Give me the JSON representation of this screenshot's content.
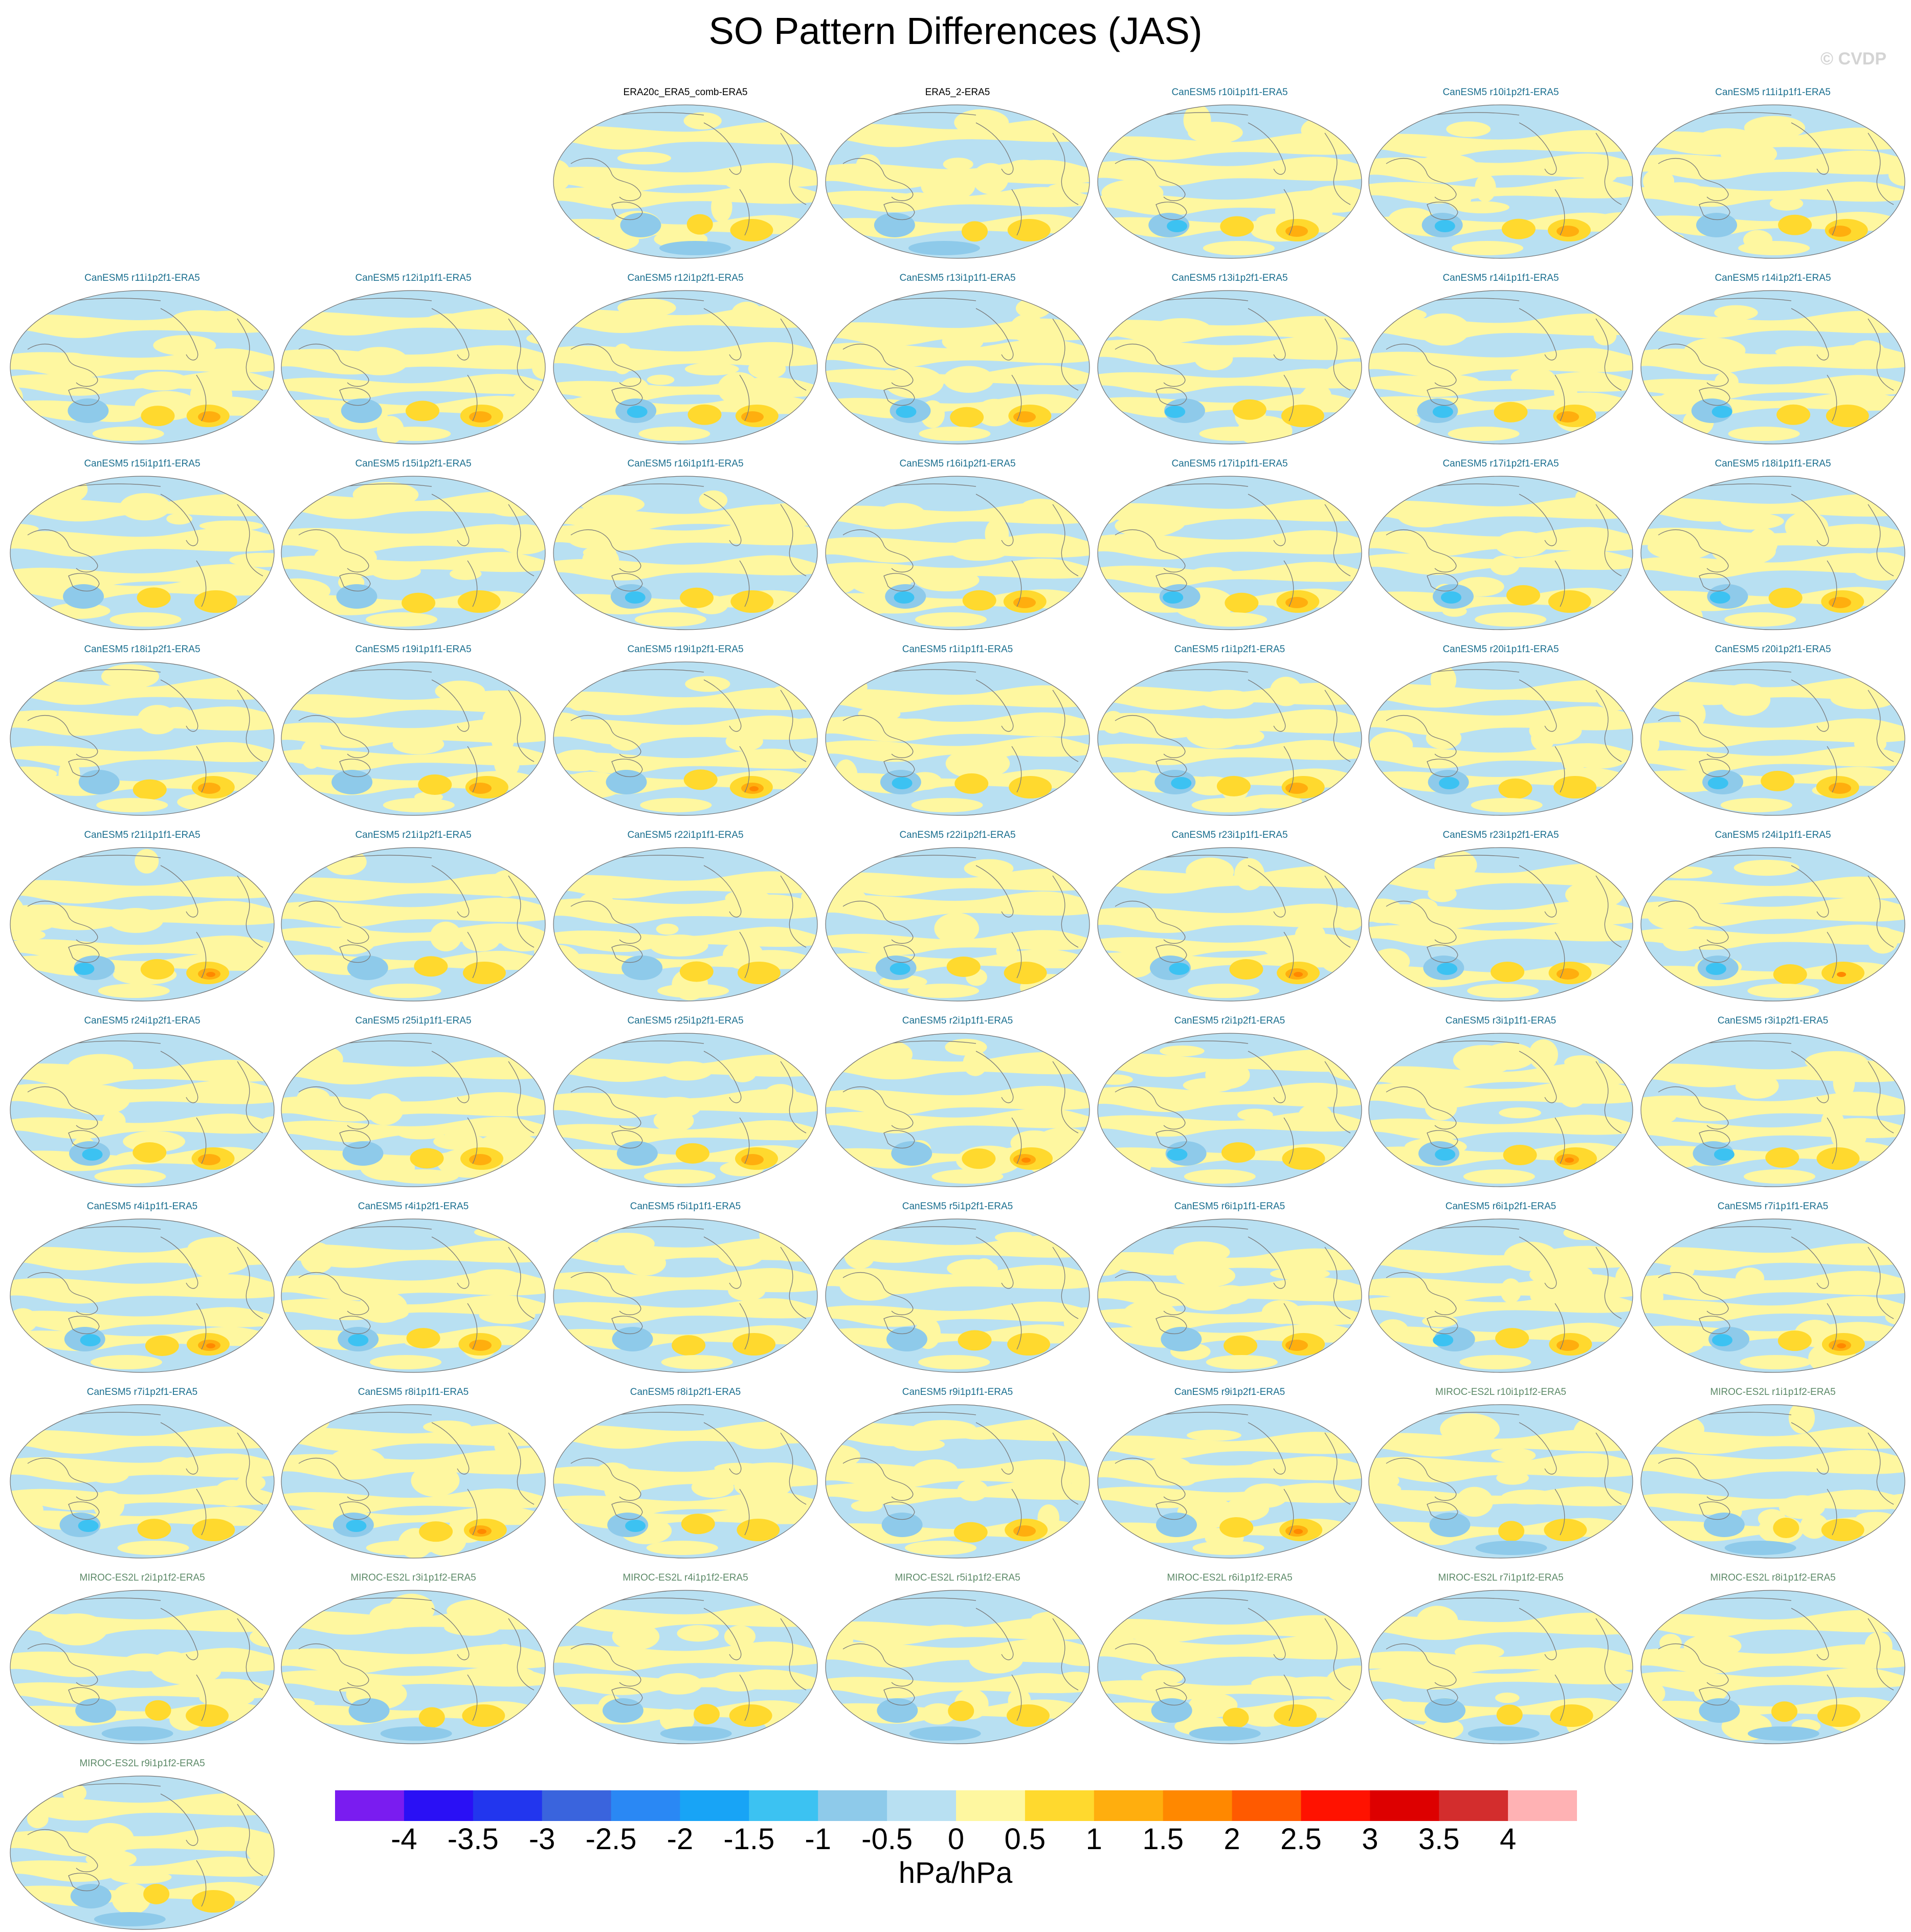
{
  "title": "SO Pattern Differences (JAS)",
  "credit": "© CVDP",
  "panels": [
    {
      "label": "ERA20c_ERA5_comb-ERA5",
      "group": "obs",
      "variant": 0
    },
    {
      "label": "ERA5_2-ERA5",
      "group": "obs",
      "variant": 1
    },
    {
      "label": "CanESM5 r10i1p1f1-ERA5",
      "group": "canesm",
      "variant": 2
    },
    {
      "label": "CanESM5 r10i1p2f1-ERA5",
      "group": "canesm",
      "variant": 3
    },
    {
      "label": "CanESM5 r11i1p1f1-ERA5",
      "group": "canesm",
      "variant": 4
    },
    {
      "label": "CanESM5 r11i1p2f1-ERA5",
      "group": "canesm",
      "variant": 5
    },
    {
      "label": "CanESM5 r12i1p1f1-ERA5",
      "group": "canesm",
      "variant": 6
    },
    {
      "label": "CanESM5 r12i1p2f1-ERA5",
      "group": "canesm",
      "variant": 7
    },
    {
      "label": "CanESM5 r13i1p1f1-ERA5",
      "group": "canesm",
      "variant": 8
    },
    {
      "label": "CanESM5 r13i1p2f1-ERA5",
      "group": "canesm",
      "variant": 9
    },
    {
      "label": "CanESM5 r14i1p1f1-ERA5",
      "group": "canesm",
      "variant": 10
    },
    {
      "label": "CanESM5 r14i1p2f1-ERA5",
      "group": "canesm",
      "variant": 11
    },
    {
      "label": "CanESM5 r15i1p1f1-ERA5",
      "group": "canesm",
      "variant": 12
    },
    {
      "label": "CanESM5 r15i1p2f1-ERA5",
      "group": "canesm",
      "variant": 13
    },
    {
      "label": "CanESM5 r16i1p1f1-ERA5",
      "group": "canesm",
      "variant": 14
    },
    {
      "label": "CanESM5 r16i1p2f1-ERA5",
      "group": "canesm",
      "variant": 15
    },
    {
      "label": "CanESM5 r17i1p1f1-ERA5",
      "group": "canesm",
      "variant": 16
    },
    {
      "label": "CanESM5 r17i1p2f1-ERA5",
      "group": "canesm",
      "variant": 17
    },
    {
      "label": "CanESM5 r18i1p1f1-ERA5",
      "group": "canesm",
      "variant": 18
    },
    {
      "label": "CanESM5 r18i1p2f1-ERA5",
      "group": "canesm",
      "variant": 19
    },
    {
      "label": "CanESM5 r19i1p1f1-ERA5",
      "group": "canesm",
      "variant": 20
    },
    {
      "label": "CanESM5 r19i1p2f1-ERA5",
      "group": "canesm",
      "variant": 21
    },
    {
      "label": "CanESM5 r1i1p1f1-ERA5",
      "group": "canesm",
      "variant": 22
    },
    {
      "label": "CanESM5 r1i1p2f1-ERA5",
      "group": "canesm",
      "variant": 23
    },
    {
      "label": "CanESM5 r20i1p1f1-ERA5",
      "group": "canesm",
      "variant": 24
    },
    {
      "label": "CanESM5 r20i1p2f1-ERA5",
      "group": "canesm",
      "variant": 25
    },
    {
      "label": "CanESM5 r21i1p1f1-ERA5",
      "group": "canesm",
      "variant": 26
    },
    {
      "label": "CanESM5 r21i1p2f1-ERA5",
      "group": "canesm",
      "variant": 27
    },
    {
      "label": "CanESM5 r22i1p1f1-ERA5",
      "group": "canesm",
      "variant": 28
    },
    {
      "label": "CanESM5 r22i1p2f1-ERA5",
      "group": "canesm",
      "variant": 29
    },
    {
      "label": "CanESM5 r23i1p1f1-ERA5",
      "group": "canesm",
      "variant": 30
    },
    {
      "label": "CanESM5 r23i1p2f1-ERA5",
      "group": "canesm",
      "variant": 31
    },
    {
      "label": "CanESM5 r24i1p1f1-ERA5",
      "group": "canesm",
      "variant": 32
    },
    {
      "label": "CanESM5 r24i1p2f1-ERA5",
      "group": "canesm",
      "variant": 33
    },
    {
      "label": "CanESM5 r25i1p1f1-ERA5",
      "group": "canesm",
      "variant": 34
    },
    {
      "label": "CanESM5 r25i1p2f1-ERA5",
      "group": "canesm",
      "variant": 35
    },
    {
      "label": "CanESM5 r2i1p1f1-ERA5",
      "group": "canesm",
      "variant": 36
    },
    {
      "label": "CanESM5 r2i1p2f1-ERA5",
      "group": "canesm",
      "variant": 37
    },
    {
      "label": "CanESM5 r3i1p1f1-ERA5",
      "group": "canesm",
      "variant": 38
    },
    {
      "label": "CanESM5 r3i1p2f1-ERA5",
      "group": "canesm",
      "variant": 39
    },
    {
      "label": "CanESM5 r4i1p1f1-ERA5",
      "group": "canesm",
      "variant": 40
    },
    {
      "label": "CanESM5 r4i1p2f1-ERA5",
      "group": "canesm",
      "variant": 41
    },
    {
      "label": "CanESM5 r5i1p1f1-ERA5",
      "group": "canesm",
      "variant": 42
    },
    {
      "label": "CanESM5 r5i1p2f1-ERA5",
      "group": "canesm",
      "variant": 43
    },
    {
      "label": "CanESM5 r6i1p1f1-ERA5",
      "group": "canesm",
      "variant": 44
    },
    {
      "label": "CanESM5 r6i1p2f1-ERA5",
      "group": "canesm",
      "variant": 45
    },
    {
      "label": "CanESM5 r7i1p1f1-ERA5",
      "group": "canesm",
      "variant": 46
    },
    {
      "label": "CanESM5 r7i1p2f1-ERA5",
      "group": "canesm",
      "variant": 47
    },
    {
      "label": "CanESM5 r8i1p1f1-ERA5",
      "group": "canesm",
      "variant": 48
    },
    {
      "label": "CanESM5 r8i1p2f1-ERA5",
      "group": "canesm",
      "variant": 49
    },
    {
      "label": "CanESM5 r9i1p1f1-ERA5",
      "group": "canesm",
      "variant": 50
    },
    {
      "label": "CanESM5 r9i1p2f1-ERA5",
      "group": "canesm",
      "variant": 51
    },
    {
      "label": "MIROC-ES2L r10i1p1f2-ERA5",
      "group": "miroc",
      "variant": 52
    },
    {
      "label": "MIROC-ES2L r1i1p1f2-ERA5",
      "group": "miroc",
      "variant": 53
    },
    {
      "label": "MIROC-ES2L r2i1p1f2-ERA5",
      "group": "miroc",
      "variant": 54
    },
    {
      "label": "MIROC-ES2L r3i1p1f2-ERA5",
      "group": "miroc",
      "variant": 55
    },
    {
      "label": "MIROC-ES2L r4i1p1f2-ERA5",
      "group": "miroc",
      "variant": 56
    },
    {
      "label": "MIROC-ES2L r5i1p1f2-ERA5",
      "group": "miroc",
      "variant": 57
    },
    {
      "label": "MIROC-ES2L r6i1p1f2-ERA5",
      "group": "miroc",
      "variant": 58
    },
    {
      "label": "MIROC-ES2L r7i1p1f2-ERA5",
      "group": "miroc",
      "variant": 59
    },
    {
      "label": "MIROC-ES2L r8i1p1f2-ERA5",
      "group": "miroc",
      "variant": 60
    },
    {
      "label": "MIROC-ES2L r9i1p1f2-ERA5",
      "group": "miroc",
      "variant": 61
    }
  ],
  "colorbar": {
    "colors": [
      "#7a1cf0",
      "#2a10f5",
      "#2236ee",
      "#3a64dd",
      "#2a88f4",
      "#18a4f6",
      "#3cc2f2",
      "#8ecaea",
      "#b8e0f2",
      "#fef7a0",
      "#ffd92e",
      "#ffae0e",
      "#ff8800",
      "#ff5a00",
      "#ff1200",
      "#dd0000",
      "#d32d2d",
      "#ffb2b4"
    ],
    "labels": [
      "-4",
      "-3.5",
      "-3",
      "-2.5",
      "-2",
      "-1.5",
      "-1",
      "-0.5",
      "0",
      "0.5",
      "1",
      "1.5",
      "2",
      "2.5",
      "3",
      "3.5",
      "4"
    ],
    "units": "hPa/hPa"
  }
}
